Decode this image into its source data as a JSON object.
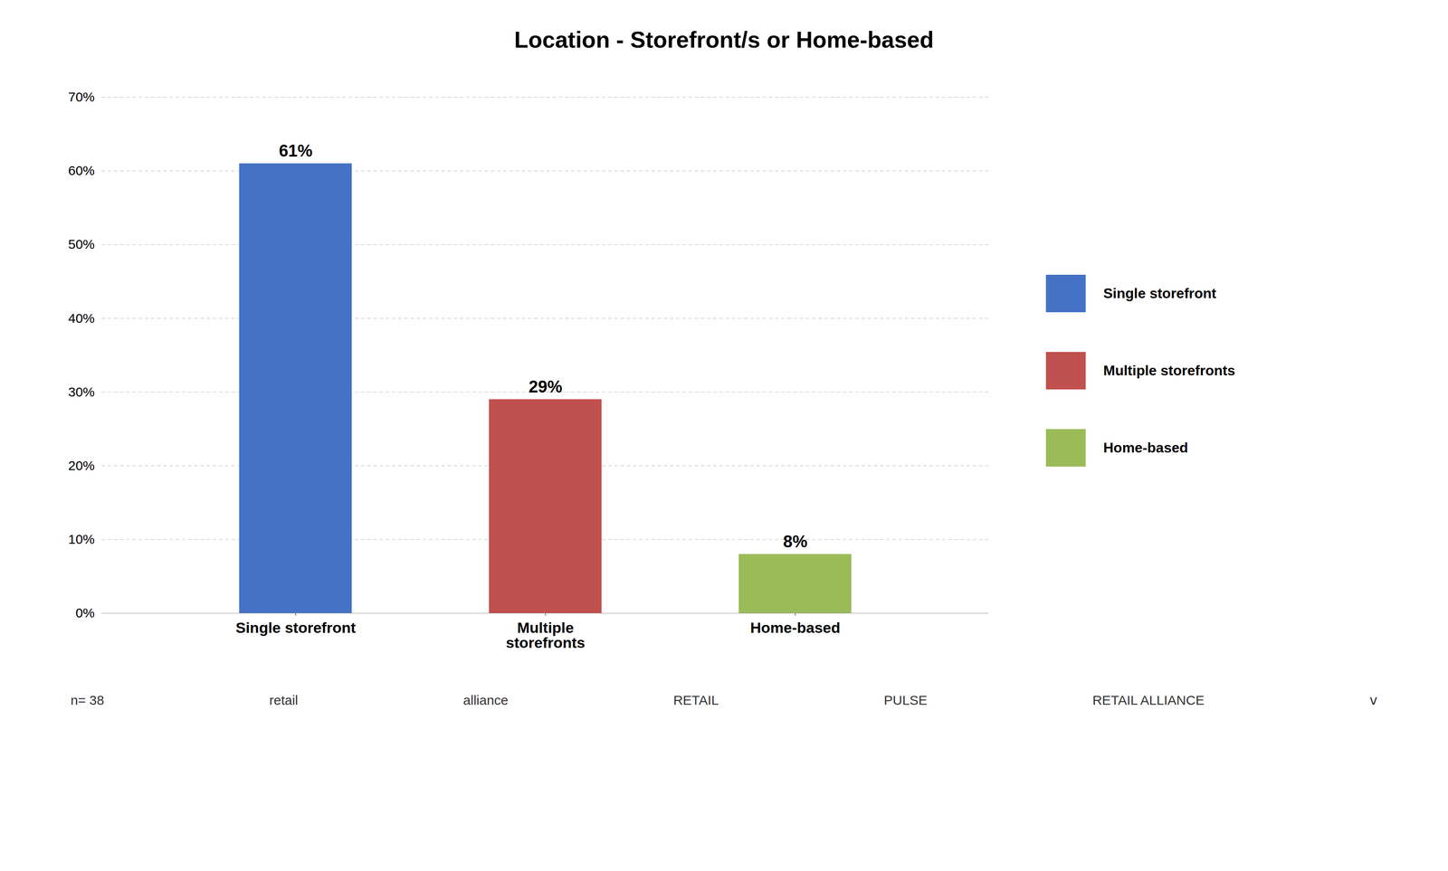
{
  "chart_data": {
    "type": "bar",
    "title": "Location - Storefront/s or Home-based",
    "categories": [
      "Single storefront",
      "Multiple\nstorefronts",
      "Home-based"
    ],
    "values": [
      0.61,
      0.29,
      0.08
    ],
    "value_labels": [
      "61%",
      "29%",
      "8%"
    ],
    "data_labels": true,
    "colors": [
      "#4472C4",
      "#C0504D",
      "#9BBB59"
    ],
    "ylim": [
      0,
      0.7
    ],
    "yticks": [
      {
        "value": 0.0,
        "label": "0%"
      },
      {
        "value": 0.1,
        "label": "10%"
      },
      {
        "value": 0.2,
        "label": "20%"
      },
      {
        "value": 0.3,
        "label": "30%"
      },
      {
        "value": 0.4,
        "label": "40%"
      },
      {
        "value": 0.5,
        "label": "50%"
      },
      {
        "value": 0.6,
        "label": "60%"
      },
      {
        "value": 0.7,
        "label": "70%"
      }
    ],
    "grid": true,
    "legend": "right",
    "annotations": [
      "n= 38",
      "retail",
      "alliance",
      "RETAIL",
      "PULSE",
      "RETAIL ALLIANCE",
      "ⅴ"
    ]
  }
}
